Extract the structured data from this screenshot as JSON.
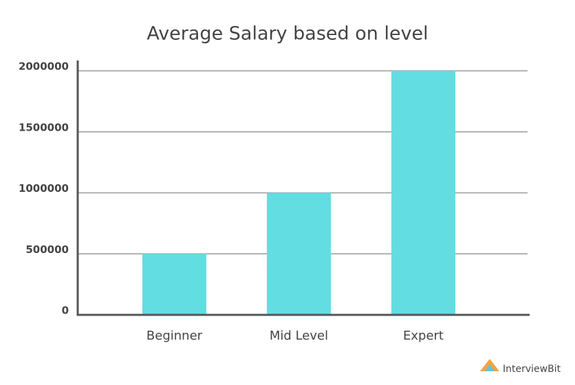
{
  "chart_data": {
    "type": "bar",
    "title": "Average Salary based on level",
    "categories": [
      "Beginner",
      "Mid Level",
      "Expert"
    ],
    "values": [
      500000,
      1000000,
      2000000
    ],
    "color": "#62dde2",
    "ylim": [
      0,
      2000000
    ],
    "yticks": [
      0,
      500000,
      1000000,
      1500000,
      2000000
    ],
    "grid": true
  },
  "watermark": "InterviewBit"
}
